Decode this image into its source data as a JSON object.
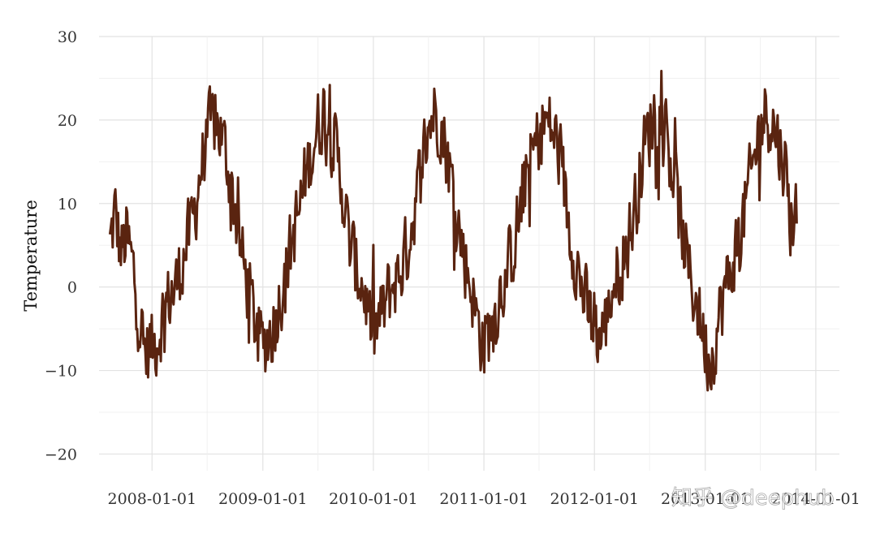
{
  "chart_data": {
    "type": "line",
    "title": "",
    "xlabel": "",
    "ylabel": "Temperature",
    "x_range": [
      "2007-07-10",
      "2014-03-20"
    ],
    "x_tick_labels": [
      "2008-01-01",
      "2009-01-01",
      "2010-01-01",
      "2011-01-01",
      "2012-01-01",
      "2013-01-01",
      "2014-01-01"
    ],
    "ylim": [
      -22,
      30
    ],
    "y_ticks": [
      30,
      20,
      10,
      0,
      -10,
      -20
    ],
    "y_tick_labels": [
      "30",
      "20",
      "10",
      "0",
      "−10",
      "−20"
    ],
    "grid": true,
    "legend": "none",
    "series": [
      {
        "color": "#5a2410",
        "points": [
          [
            "2007-08-15",
            5
          ],
          [
            "2007-09-01",
            9
          ],
          [
            "2007-09-20",
            4
          ],
          [
            "2007-10-10",
            6
          ],
          [
            "2007-11-01",
            2
          ],
          [
            "2007-11-20",
            -4
          ],
          [
            "2007-12-10",
            -8
          ],
          [
            "2008-01-01",
            -7
          ],
          [
            "2008-01-20",
            -6
          ],
          [
            "2008-02-10",
            -3
          ],
          [
            "2008-03-01",
            -1
          ],
          [
            "2008-03-20",
            0
          ],
          [
            "2008-04-10",
            3
          ],
          [
            "2008-05-01",
            6
          ],
          [
            "2008-05-20",
            9
          ],
          [
            "2008-06-10",
            14
          ],
          [
            "2008-07-01",
            18
          ],
          [
            "2008-07-20",
            20
          ],
          [
            "2008-08-10",
            19
          ],
          [
            "2008-09-01",
            16
          ],
          [
            "2008-09-20",
            12
          ],
          [
            "2008-10-10",
            7
          ],
          [
            "2008-11-01",
            2
          ],
          [
            "2008-11-20",
            -1
          ],
          [
            "2008-12-10",
            -5
          ],
          [
            "2009-01-01",
            -7
          ],
          [
            "2009-01-20",
            -6
          ],
          [
            "2009-02-10",
            -4
          ],
          [
            "2009-03-01",
            -1
          ],
          [
            "2009-03-20",
            2
          ],
          [
            "2009-04-10",
            6
          ],
          [
            "2009-05-01",
            9
          ],
          [
            "2009-05-20",
            13
          ],
          [
            "2009-06-10",
            16
          ],
          [
            "2009-07-01",
            19
          ],
          [
            "2009-07-20",
            21
          ],
          [
            "2009-08-10",
            19
          ],
          [
            "2009-09-01",
            16
          ],
          [
            "2009-09-20",
            12
          ],
          [
            "2009-10-10",
            6
          ],
          [
            "2009-11-01",
            3
          ],
          [
            "2009-11-20",
            1
          ],
          [
            "2009-12-10",
            -2
          ],
          [
            "2010-01-01",
            -6
          ],
          [
            "2010-01-20",
            -4
          ],
          [
            "2010-02-10",
            -2
          ],
          [
            "2010-03-01",
            0
          ],
          [
            "2010-03-20",
            1
          ],
          [
            "2010-04-10",
            3
          ],
          [
            "2010-05-01",
            6
          ],
          [
            "2010-05-20",
            10
          ],
          [
            "2010-06-10",
            15
          ],
          [
            "2010-07-01",
            19
          ],
          [
            "2010-07-20",
            21
          ],
          [
            "2010-08-10",
            20
          ],
          [
            "2010-09-01",
            16
          ],
          [
            "2010-09-20",
            12
          ],
          [
            "2010-10-10",
            7
          ],
          [
            "2010-11-01",
            3
          ],
          [
            "2010-11-20",
            0
          ],
          [
            "2010-12-10",
            -4
          ],
          [
            "2011-01-01",
            -7
          ],
          [
            "2011-01-20",
            -5
          ],
          [
            "2011-02-10",
            -3
          ],
          [
            "2011-03-01",
            0
          ],
          [
            "2011-03-20",
            2
          ],
          [
            "2011-04-10",
            5
          ],
          [
            "2011-05-01",
            9
          ],
          [
            "2011-05-20",
            13
          ],
          [
            "2011-06-10",
            16
          ],
          [
            "2011-07-01",
            18
          ],
          [
            "2011-07-20",
            20
          ],
          [
            "2011-08-10",
            19
          ],
          [
            "2011-09-01",
            17
          ],
          [
            "2011-09-20",
            13
          ],
          [
            "2011-10-10",
            7
          ],
          [
            "2011-11-01",
            3
          ],
          [
            "2011-11-20",
            0
          ],
          [
            "2011-12-10",
            -3
          ],
          [
            "2012-01-01",
            -5
          ],
          [
            "2012-01-20",
            -6
          ],
          [
            "2012-02-10",
            -4
          ],
          [
            "2012-03-01",
            0
          ],
          [
            "2012-03-20",
            2
          ],
          [
            "2012-04-10",
            4
          ],
          [
            "2012-05-01",
            7
          ],
          [
            "2012-05-20",
            11
          ],
          [
            "2012-06-10",
            16
          ],
          [
            "2012-07-01",
            19
          ],
          [
            "2012-07-20",
            21
          ],
          [
            "2012-08-10",
            20
          ],
          [
            "2012-09-01",
            17
          ],
          [
            "2012-09-20",
            13
          ],
          [
            "2012-10-10",
            8
          ],
          [
            "2012-11-01",
            3
          ],
          [
            "2012-11-20",
            0
          ],
          [
            "2012-12-10",
            -3
          ],
          [
            "2013-01-01",
            -7
          ],
          [
            "2013-01-20",
            -9
          ],
          [
            "2013-02-10",
            -5
          ],
          [
            "2013-03-01",
            -1
          ],
          [
            "2013-03-20",
            1
          ],
          [
            "2013-04-10",
            4
          ],
          [
            "2013-05-01",
            7
          ],
          [
            "2013-05-20",
            11
          ],
          [
            "2013-06-10",
            15
          ],
          [
            "2013-07-01",
            19
          ],
          [
            "2013-07-20",
            21
          ],
          [
            "2013-08-10",
            20
          ],
          [
            "2013-09-01",
            17
          ],
          [
            "2013-09-20",
            15
          ],
          [
            "2013-10-10",
            8
          ],
          [
            "2013-10-31",
            9
          ]
        ],
        "amplitude_noise": 4.2
      }
    ]
  },
  "watermark": {
    "text": "知乎 @deephub"
  }
}
